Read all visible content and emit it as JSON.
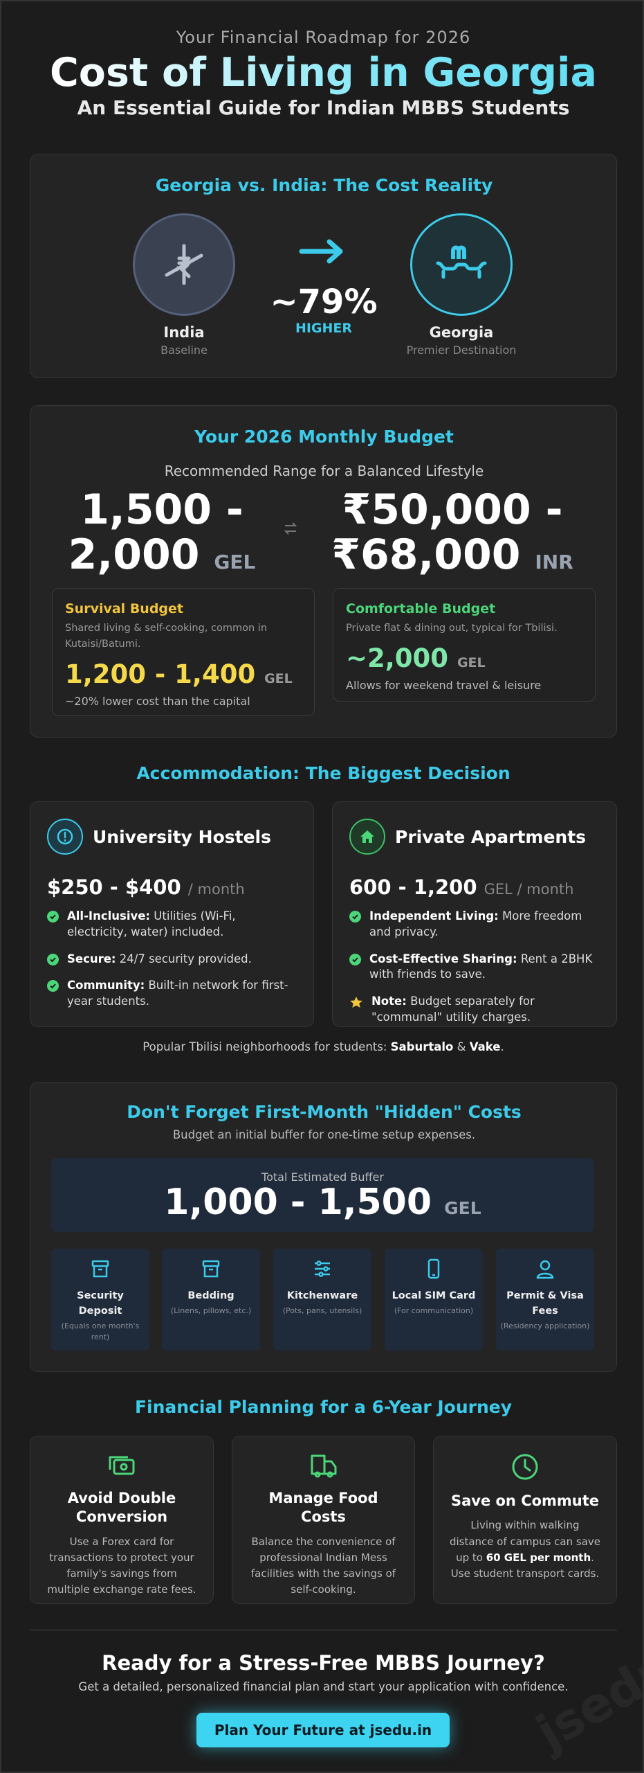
{
  "header": {
    "eyebrow": "Your Financial Roadmap for 2026",
    "title": "Cost of Living in Georgia",
    "subtitle": "An Essential Guide for Indian MBBS Students"
  },
  "comparison": {
    "title": "Georgia vs. India: The Cost Reality",
    "left": {
      "name": "India",
      "note": "Baseline"
    },
    "difference": "~79%",
    "difference_label": "HIGHER",
    "right": {
      "name": "Georgia",
      "note": "Premier Destination"
    }
  },
  "budget": {
    "title": "Your 2026 Monthly Budget",
    "subtitle": "Recommended Range for a Balanced Lifestyle",
    "gel_amount": "1,500 - 2,000",
    "gel_unit": "GEL",
    "inr_amount": "₹50,000 - ₹68,000",
    "inr_unit": "INR",
    "cards": [
      {
        "title": "Survival Budget",
        "description": "Shared living & self-cooking, common in Kutaisi/Batumi.",
        "amount": "1,200 - 1,400",
        "unit": "GEL",
        "note": "~20% lower cost than the capital"
      },
      {
        "title": "Comfortable Budget",
        "description": "Private flat & dining out, typical for Tbilisi.",
        "amount": "~2,000",
        "unit": "GEL",
        "note": "Allows for weekend travel & leisure"
      }
    ]
  },
  "accommodation": {
    "title": "Accommodation: The Biggest Decision",
    "cards": [
      {
        "title": "University Hostels",
        "price": "$250 - $400",
        "period": "/ month",
        "items": [
          {
            "label": "All-Inclusive:",
            "text": "Utilities (Wi-Fi, electricity, water) included."
          },
          {
            "label": "Secure:",
            "text": "24/7 security provided."
          },
          {
            "label": "Community:",
            "text": "Built-in network for first-year students."
          }
        ]
      },
      {
        "title": "Private Apartments",
        "price": "600 - 1,200",
        "period": "GEL / month",
        "items": [
          {
            "label": "Independent Living:",
            "text": "More freedom and privacy."
          },
          {
            "label": "Cost-Effective Sharing:",
            "text": "Rent a 2BHK with friends to save."
          },
          {
            "label": "Note:",
            "text": "Budget separately for \"communal\" utility charges."
          }
        ]
      }
    ],
    "neighborhoods": [
      "Popular Tbilisi neighborhoods for students: ",
      "Saburtalo",
      " & ",
      "Vake",
      "."
    ]
  },
  "hidden_costs": {
    "title": "Don't Forget First-Month \"Hidden\" Costs",
    "subtitle": "Budget an initial buffer for one-time setup expenses.",
    "buffer_label": "Total Estimated Buffer",
    "buffer_amount": "1,000 - 1,500",
    "buffer_unit": "GEL",
    "items": [
      {
        "name": "Security Deposit",
        "note": "(Equals one month's rent)"
      },
      {
        "name": "Bedding",
        "note": "(Linens, pillows, etc.)"
      },
      {
        "name": "Kitchenware",
        "note": "(Pots, pans, utensils)"
      },
      {
        "name": "Local SIM Card",
        "note": "(For communication)"
      },
      {
        "name": "Permit & Visa Fees",
        "note": "(Residency application)"
      }
    ]
  },
  "planning": {
    "title": "Financial Planning for a 6-Year Journey",
    "cards": [
      {
        "title": "Avoid Double Conversion",
        "text": [
          "Use a Forex card for transactions to protect your family's savings from multiple exchange rate fees."
        ]
      },
      {
        "title": "Manage Food Costs",
        "text": [
          "Balance the convenience of professional Indian Mess facilities with the savings of self-cooking."
        ]
      },
      {
        "title": "Save on Commute",
        "text": [
          "Living within walking distance of campus can save up to ",
          "60 GEL per month",
          ". Use student transport cards."
        ]
      }
    ]
  },
  "cta": {
    "title": "Ready for a Stress-Free MBBS Journey?",
    "text": "Get a detailed, personalized financial plan and start your application with confidence.",
    "button": "Plan Your Future at jsedu.in",
    "watermark": "jsedu.in"
  }
}
